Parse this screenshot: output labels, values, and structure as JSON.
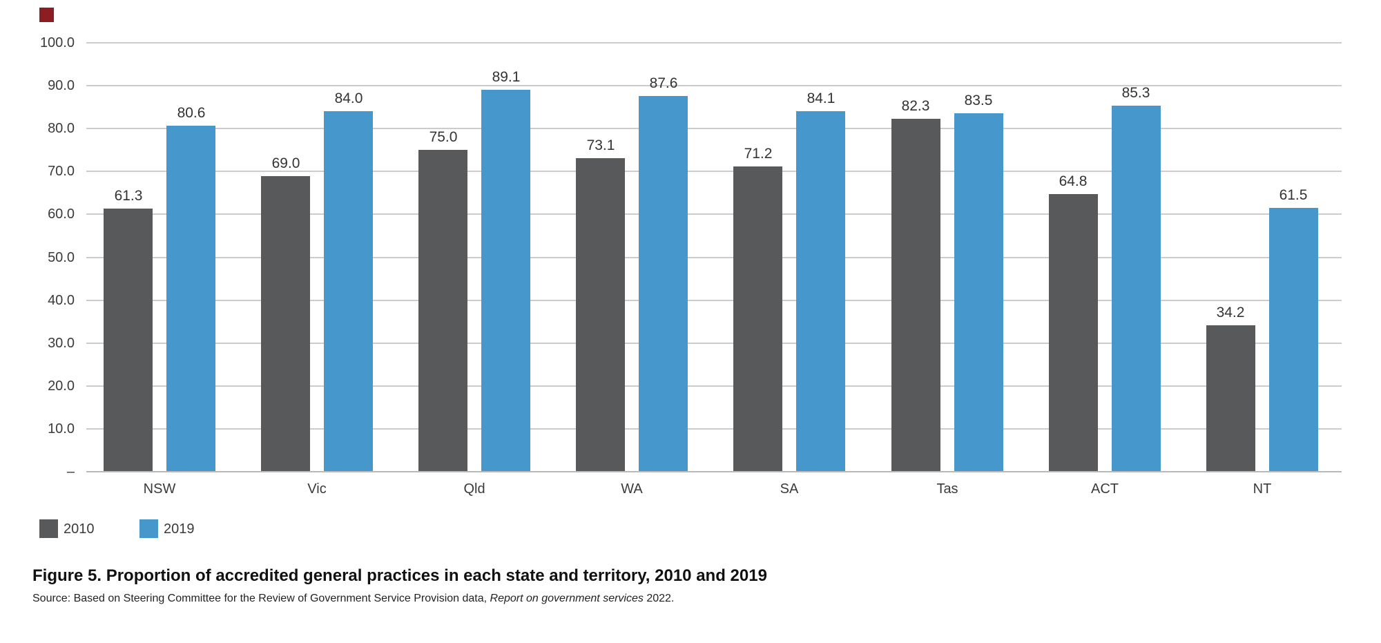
{
  "brand": {
    "accent_square_color": "#8C1D21"
  },
  "chart_data": {
    "type": "bar",
    "categories": [
      "NSW",
      "Vic",
      "Qld",
      "WA",
      "SA",
      "Tas",
      "ACT",
      "NT"
    ],
    "series": [
      {
        "name": "2010",
        "color": "#58595B",
        "values": [
          61.3,
          69.0,
          75.0,
          73.1,
          71.2,
          82.3,
          64.8,
          34.2
        ]
      },
      {
        "name": "2019",
        "color": "#4697CB",
        "values": [
          80.6,
          84.0,
          89.1,
          87.6,
          84.1,
          83.5,
          85.3,
          61.5
        ]
      }
    ],
    "title": "Figure 5. Proportion of accredited general practices in each state and territory, 2010 and 2019",
    "xlabel": "",
    "ylabel": "",
    "ylim": [
      0,
      100
    ],
    "ytick_step": 10,
    "ytick_labels": [
      "100.0",
      "90.0",
      "80.0",
      "70.0",
      "60.0",
      "50.0",
      "40.0",
      "30.0",
      "20.0",
      "10.0",
      "–"
    ],
    "grid": true,
    "value_labels": true,
    "value_label_decimals": 1,
    "legend_position": "bottom-left"
  },
  "legend": {
    "items": [
      {
        "label": "2010",
        "color": "#58595B"
      },
      {
        "label": "2019",
        "color": "#4697CB"
      }
    ]
  },
  "caption": {
    "title": "Figure 5. Proportion of accredited general practices in each state and territory, 2010 and 2019",
    "source_prefix": "Source: Based on Steering Committee for the Review of Government Service Provision data, ",
    "source_italic": "Report on government services",
    "source_suffix": " 2022."
  }
}
